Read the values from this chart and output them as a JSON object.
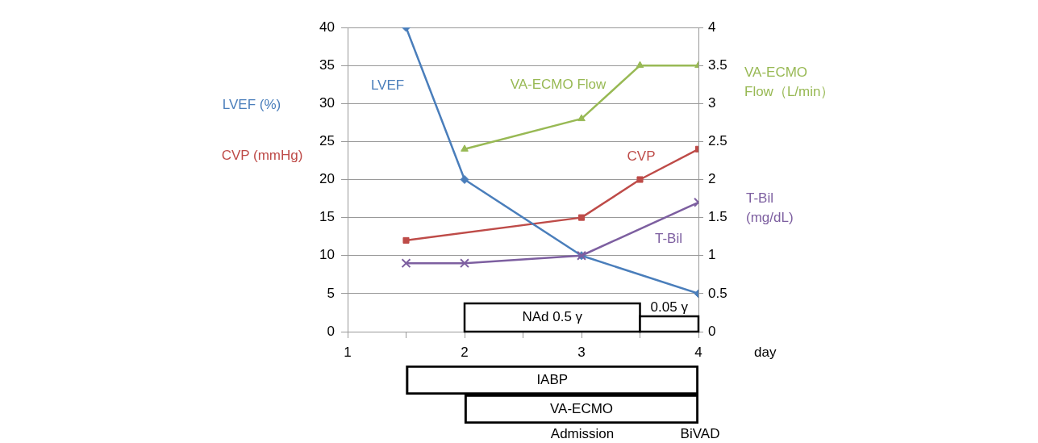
{
  "chart_data": [
    {
      "type": "line",
      "xlabel": "day",
      "ylabel": "LVEF (%)",
      "y2label": "VA-ECMO Flow（L/min）",
      "xlim": [
        1,
        4
      ],
      "xticks": [
        1,
        {
          "value": 1.5,
          "label": null
        },
        2,
        {
          "value": 2.5,
          "label": null
        },
        3,
        {
          "value": 3.5,
          "label": null
        },
        4
      ],
      "ylim": [
        0,
        40
      ],
      "yticks": [
        0,
        5,
        10,
        15,
        20,
        25,
        30,
        35,
        40
      ],
      "y2lim": [
        0,
        4
      ],
      "y2ticks": [
        0,
        0.5,
        1,
        1.5,
        2,
        2.5,
        3,
        3.5,
        4
      ],
      "grid": "y",
      "legend": false,
      "series": [
        {
          "name": "LVEF",
          "color": "#4a7ebb",
          "x": [
            1.5,
            2,
            3,
            4
          ],
          "values": [
            40,
            20,
            10,
            5
          ],
          "marker": "diamond"
        },
        {
          "name": "CVP",
          "color": "#be4b48",
          "x": [
            1.5,
            3,
            3.5,
            4
          ],
          "values": [
            12,
            15,
            20,
            24
          ],
          "marker": "square"
        },
        {
          "name": "T-Bil",
          "color": "#7d5fa0",
          "x": [
            1.5,
            2,
            3,
            4
          ],
          "values": [
            0.9,
            0.9,
            1.0,
            1.7
          ],
          "marker": "cross",
          "axis": "y2"
        },
        {
          "name": "VA-ECMO Flow",
          "color": "#98b954",
          "x": [
            2,
            3,
            3.5,
            4
          ],
          "values": [
            2.4,
            2.8,
            3.5,
            3.5
          ],
          "marker": "triangle",
          "axis": "y2"
        }
      ],
      "bands": [
        {
          "axis": "x",
          "from": 2,
          "to": 3.5,
          "label": "NAd 0.5 γ",
          "color": "#ffffff"
        },
        {
          "axis": "x",
          "from": 3.5,
          "to": 4,
          "label": "0.05 γ",
          "color": "#ffffff"
        }
      ],
      "annotations": [
        "CVP (mmHg)",
        "T-Bil (mg/dL)"
      ]
    },
    {
      "type": "bar",
      "orientation": "horizontal",
      "categories": [
        "IABP",
        "VA-ECMO"
      ],
      "base": [
        1.5,
        2
      ],
      "values": [
        2.5,
        2
      ],
      "colors": [
        "#000000",
        "#000000"
      ],
      "xlim": [
        1,
        4
      ],
      "tick_labels": "y",
      "annotations": [
        "Admission",
        "BiVAD"
      ]
    }
  ]
}
